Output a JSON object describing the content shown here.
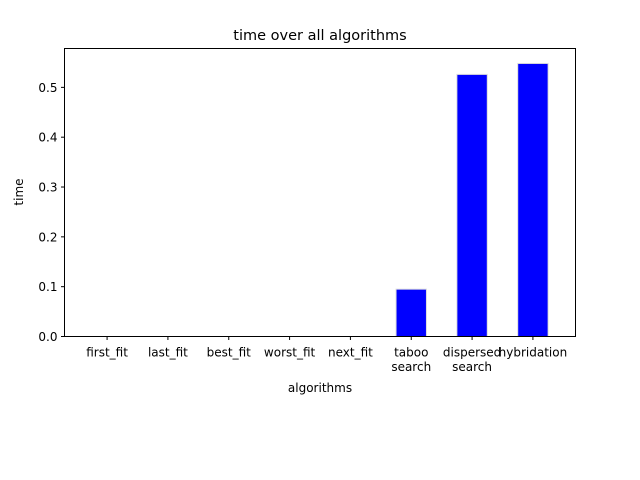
{
  "chart_data": {
    "type": "bar",
    "title": "time over all algorithms",
    "xlabel": "algorithms",
    "ylabel": "time",
    "categories": [
      [
        "first_fit"
      ],
      [
        "last_fit"
      ],
      [
        "best_fit"
      ],
      [
        "worst_fit"
      ],
      [
        "next_fit"
      ],
      [
        "taboo",
        "search"
      ],
      [
        "dispersed",
        "search"
      ],
      [
        "hybridation"
      ]
    ],
    "values": [
      0.0,
      0.0,
      0.0,
      0.0,
      0.0,
      0.095,
      0.526,
      0.548
    ],
    "ylim": [
      0,
      0.578
    ],
    "yticks": [
      "0.0",
      "0.1",
      "0.2",
      "0.3",
      "0.4",
      "0.5"
    ],
    "bar_color": "#0000ff",
    "bar_edge_color": "#dddddd",
    "grid": false
  }
}
